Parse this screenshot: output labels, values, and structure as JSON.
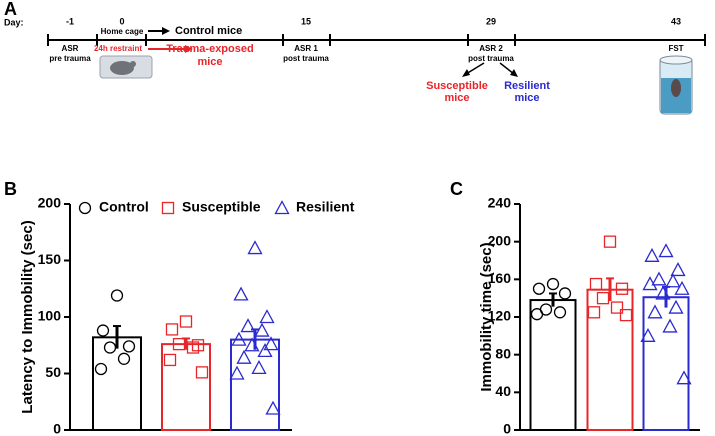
{
  "timeline": {
    "panel": "A",
    "day_label": "Day:",
    "days": [
      "-1",
      "0",
      "15",
      "29",
      "43"
    ],
    "asr_pre": [
      "ASR",
      "pre trauma"
    ],
    "home_cage": "Home cage",
    "restraint": "24h restraint",
    "control": "Control mice",
    "trauma": [
      "Trauma-exposed",
      "mice"
    ],
    "asr1": [
      "ASR 1",
      "post trauma"
    ],
    "asr2": [
      "ASR 2",
      "post trauma"
    ],
    "susceptible": [
      "Susceptible",
      "mice"
    ],
    "resilient": [
      "Resilient",
      "mice"
    ],
    "fst": "FST"
  },
  "chart_data": [
    {
      "type": "bar",
      "panel": "B",
      "ylabel": "Latency to Immobility (sec)",
      "ylim": [
        0,
        200
      ],
      "yticks": [
        0,
        50,
        100,
        150,
        200
      ],
      "series": [
        {
          "name": "Control",
          "color": "#000000",
          "marker": "circle",
          "value": 82,
          "error": 10,
          "points": [
            119,
            88,
            74,
            73,
            63,
            54
          ]
        },
        {
          "name": "Susceptible",
          "color": "#e8262a",
          "marker": "square",
          "value": 76,
          "error": 5,
          "points": [
            96,
            89,
            75,
            76,
            73,
            62,
            51
          ]
        },
        {
          "name": "Resilient",
          "color": "#2a2ad0",
          "marker": "triangle",
          "value": 80,
          "error": 9,
          "points": [
            161,
            120,
            100,
            92,
            88,
            80,
            76,
            75,
            70,
            64,
            55,
            50,
            19
          ]
        }
      ]
    },
    {
      "type": "bar",
      "panel": "C",
      "ylabel": "Immobility time (sec)",
      "ylim": [
        0,
        240
      ],
      "yticks": [
        0,
        40,
        80,
        120,
        160,
        200,
        240
      ],
      "series": [
        {
          "color": "#000000",
          "marker": "circle",
          "value": 138,
          "error": 7,
          "points": [
            155,
            150,
            145,
            128,
            125,
            123
          ]
        },
        {
          "color": "#e8262a",
          "marker": "square",
          "value": 149,
          "error": 12,
          "points": [
            200,
            155,
            150,
            140,
            130,
            125,
            122
          ]
        },
        {
          "color": "#2a2ad0",
          "marker": "triangle",
          "value": 141,
          "error": 11,
          "points": [
            190,
            185,
            170,
            160,
            158,
            155,
            150,
            145,
            130,
            125,
            110,
            100,
            55
          ]
        }
      ]
    }
  ]
}
